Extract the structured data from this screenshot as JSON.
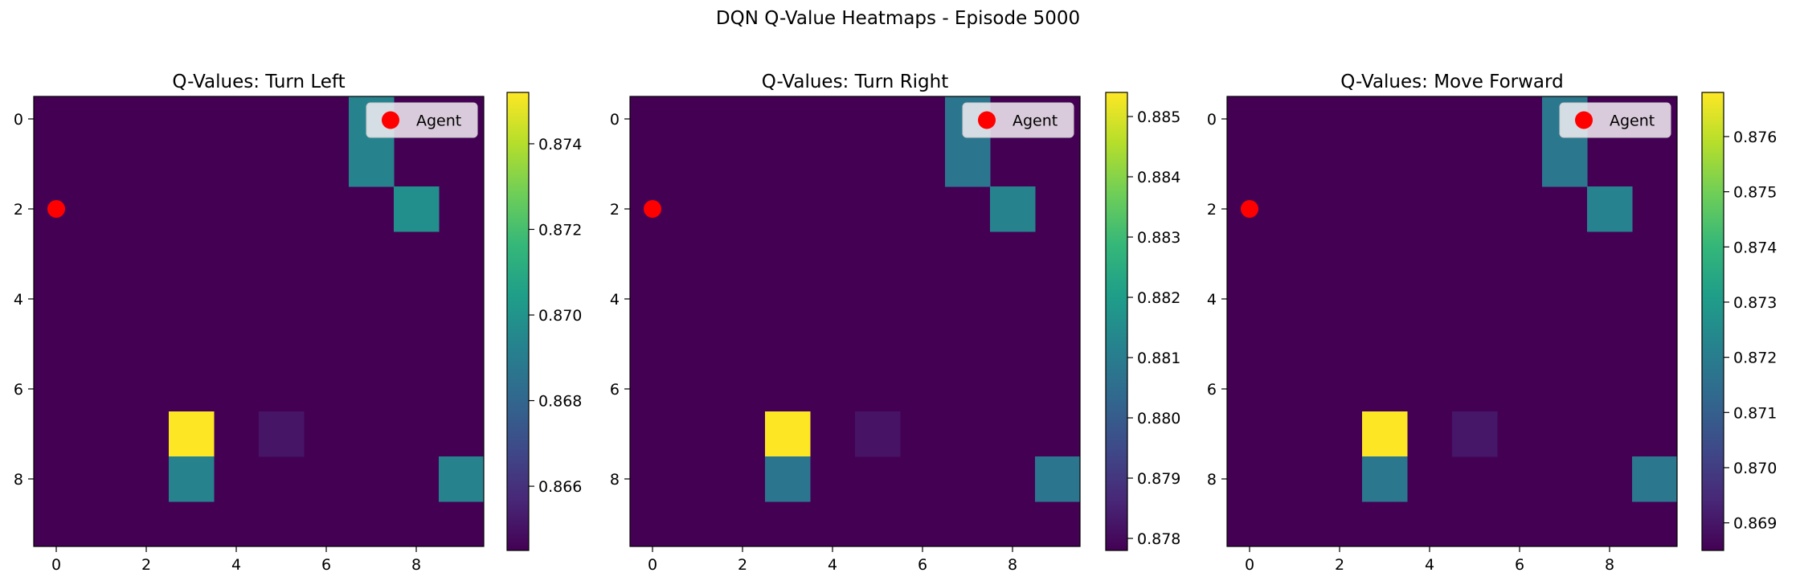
{
  "figure": {
    "title": "DQN Q-Value Heatmaps - Episode 5000"
  },
  "colors": {
    "viridis": [
      "#440154",
      "#482878",
      "#3e4a89",
      "#31688e",
      "#26828e",
      "#1f9e89",
      "#35b779",
      "#6ece58",
      "#b5de2b",
      "#fde725"
    ],
    "agent_marker": "#ff0000",
    "legend_bg": "#f3eef3"
  },
  "chart_data": [
    {
      "type": "heatmap",
      "title": "Q-Values: Turn Left",
      "xlabel": "",
      "ylabel": "",
      "x_ticks": [
        0,
        2,
        4,
        6,
        8
      ],
      "y_ticks": [
        0,
        2,
        4,
        6,
        8
      ],
      "xlim": [
        -0.5,
        9.5
      ],
      "ylim": [
        9.5,
        -0.5
      ],
      "colorbar": {
        "min": 0.8645,
        "max": 0.8752,
        "ticks": [
          0.866,
          0.868,
          0.87,
          0.872,
          0.874
        ],
        "tick_labels": [
          "0.866",
          "0.868",
          "0.870",
          "0.872",
          "0.874"
        ]
      },
      "cells": [
        {
          "row": 0,
          "col": 7,
          "value": 0.8693
        },
        {
          "row": 1,
          "col": 7,
          "value": 0.8693
        },
        {
          "row": 2,
          "col": 8,
          "value": 0.8698
        },
        {
          "row": 7,
          "col": 3,
          "value": 0.8752
        },
        {
          "row": 7,
          "col": 5,
          "value": 0.8651
        },
        {
          "row": 8,
          "col": 3,
          "value": 0.8693
        },
        {
          "row": 8,
          "col": 9,
          "value": 0.8693
        }
      ],
      "background_value": 0.8645,
      "agent": {
        "row": 2,
        "col": 0
      },
      "legend": {
        "location": "upper-right",
        "entries": [
          "Agent"
        ]
      }
    },
    {
      "type": "heatmap",
      "title": "Q-Values: Turn Right",
      "xlabel": "",
      "ylabel": "",
      "x_ticks": [
        0,
        2,
        4,
        6,
        8
      ],
      "y_ticks": [
        0,
        2,
        4,
        6,
        8
      ],
      "xlim": [
        -0.5,
        9.5
      ],
      "ylim": [
        9.5,
        -0.5
      ],
      "colorbar": {
        "min": 0.8778,
        "max": 0.8854,
        "ticks": [
          0.878,
          0.879,
          0.88,
          0.881,
          0.882,
          0.883,
          0.884,
          0.885
        ],
        "tick_labels": [
          "0.878",
          "0.879",
          "0.880",
          "0.881",
          "0.882",
          "0.883",
          "0.884",
          "0.885"
        ]
      },
      "cells": [
        {
          "row": 0,
          "col": 7,
          "value": 0.8808
        },
        {
          "row": 1,
          "col": 7,
          "value": 0.8808
        },
        {
          "row": 2,
          "col": 8,
          "value": 0.8812
        },
        {
          "row": 7,
          "col": 3,
          "value": 0.8854
        },
        {
          "row": 7,
          "col": 5,
          "value": 0.8782
        },
        {
          "row": 8,
          "col": 3,
          "value": 0.8808
        },
        {
          "row": 8,
          "col": 9,
          "value": 0.8808
        }
      ],
      "background_value": 0.8778,
      "agent": {
        "row": 2,
        "col": 0
      },
      "legend": {
        "location": "upper-right",
        "entries": [
          "Agent"
        ]
      }
    },
    {
      "type": "heatmap",
      "title": "Q-Values: Move Forward",
      "xlabel": "",
      "ylabel": "",
      "x_ticks": [
        0,
        2,
        4,
        6,
        8
      ],
      "y_ticks": [
        0,
        2,
        4,
        6,
        8
      ],
      "xlim": [
        -0.5,
        9.5
      ],
      "ylim": [
        9.5,
        -0.5
      ],
      "colorbar": {
        "min": 0.8685,
        "max": 0.8768,
        "ticks": [
          0.869,
          0.87,
          0.871,
          0.872,
          0.873,
          0.874,
          0.875,
          0.876
        ],
        "tick_labels": [
          "0.869",
          "0.870",
          "0.871",
          "0.872",
          "0.873",
          "0.874",
          "0.875",
          "0.876"
        ]
      },
      "cells": [
        {
          "row": 0,
          "col": 7,
          "value": 0.8718
        },
        {
          "row": 1,
          "col": 7,
          "value": 0.8718
        },
        {
          "row": 2,
          "col": 8,
          "value": 0.8722
        },
        {
          "row": 7,
          "col": 3,
          "value": 0.8768
        },
        {
          "row": 7,
          "col": 5,
          "value": 0.869
        },
        {
          "row": 8,
          "col": 3,
          "value": 0.8718
        },
        {
          "row": 8,
          "col": 9,
          "value": 0.8718
        }
      ],
      "background_value": 0.8685,
      "agent": {
        "row": 2,
        "col": 0
      },
      "legend": {
        "location": "upper-right",
        "entries": [
          "Agent"
        ]
      }
    }
  ]
}
